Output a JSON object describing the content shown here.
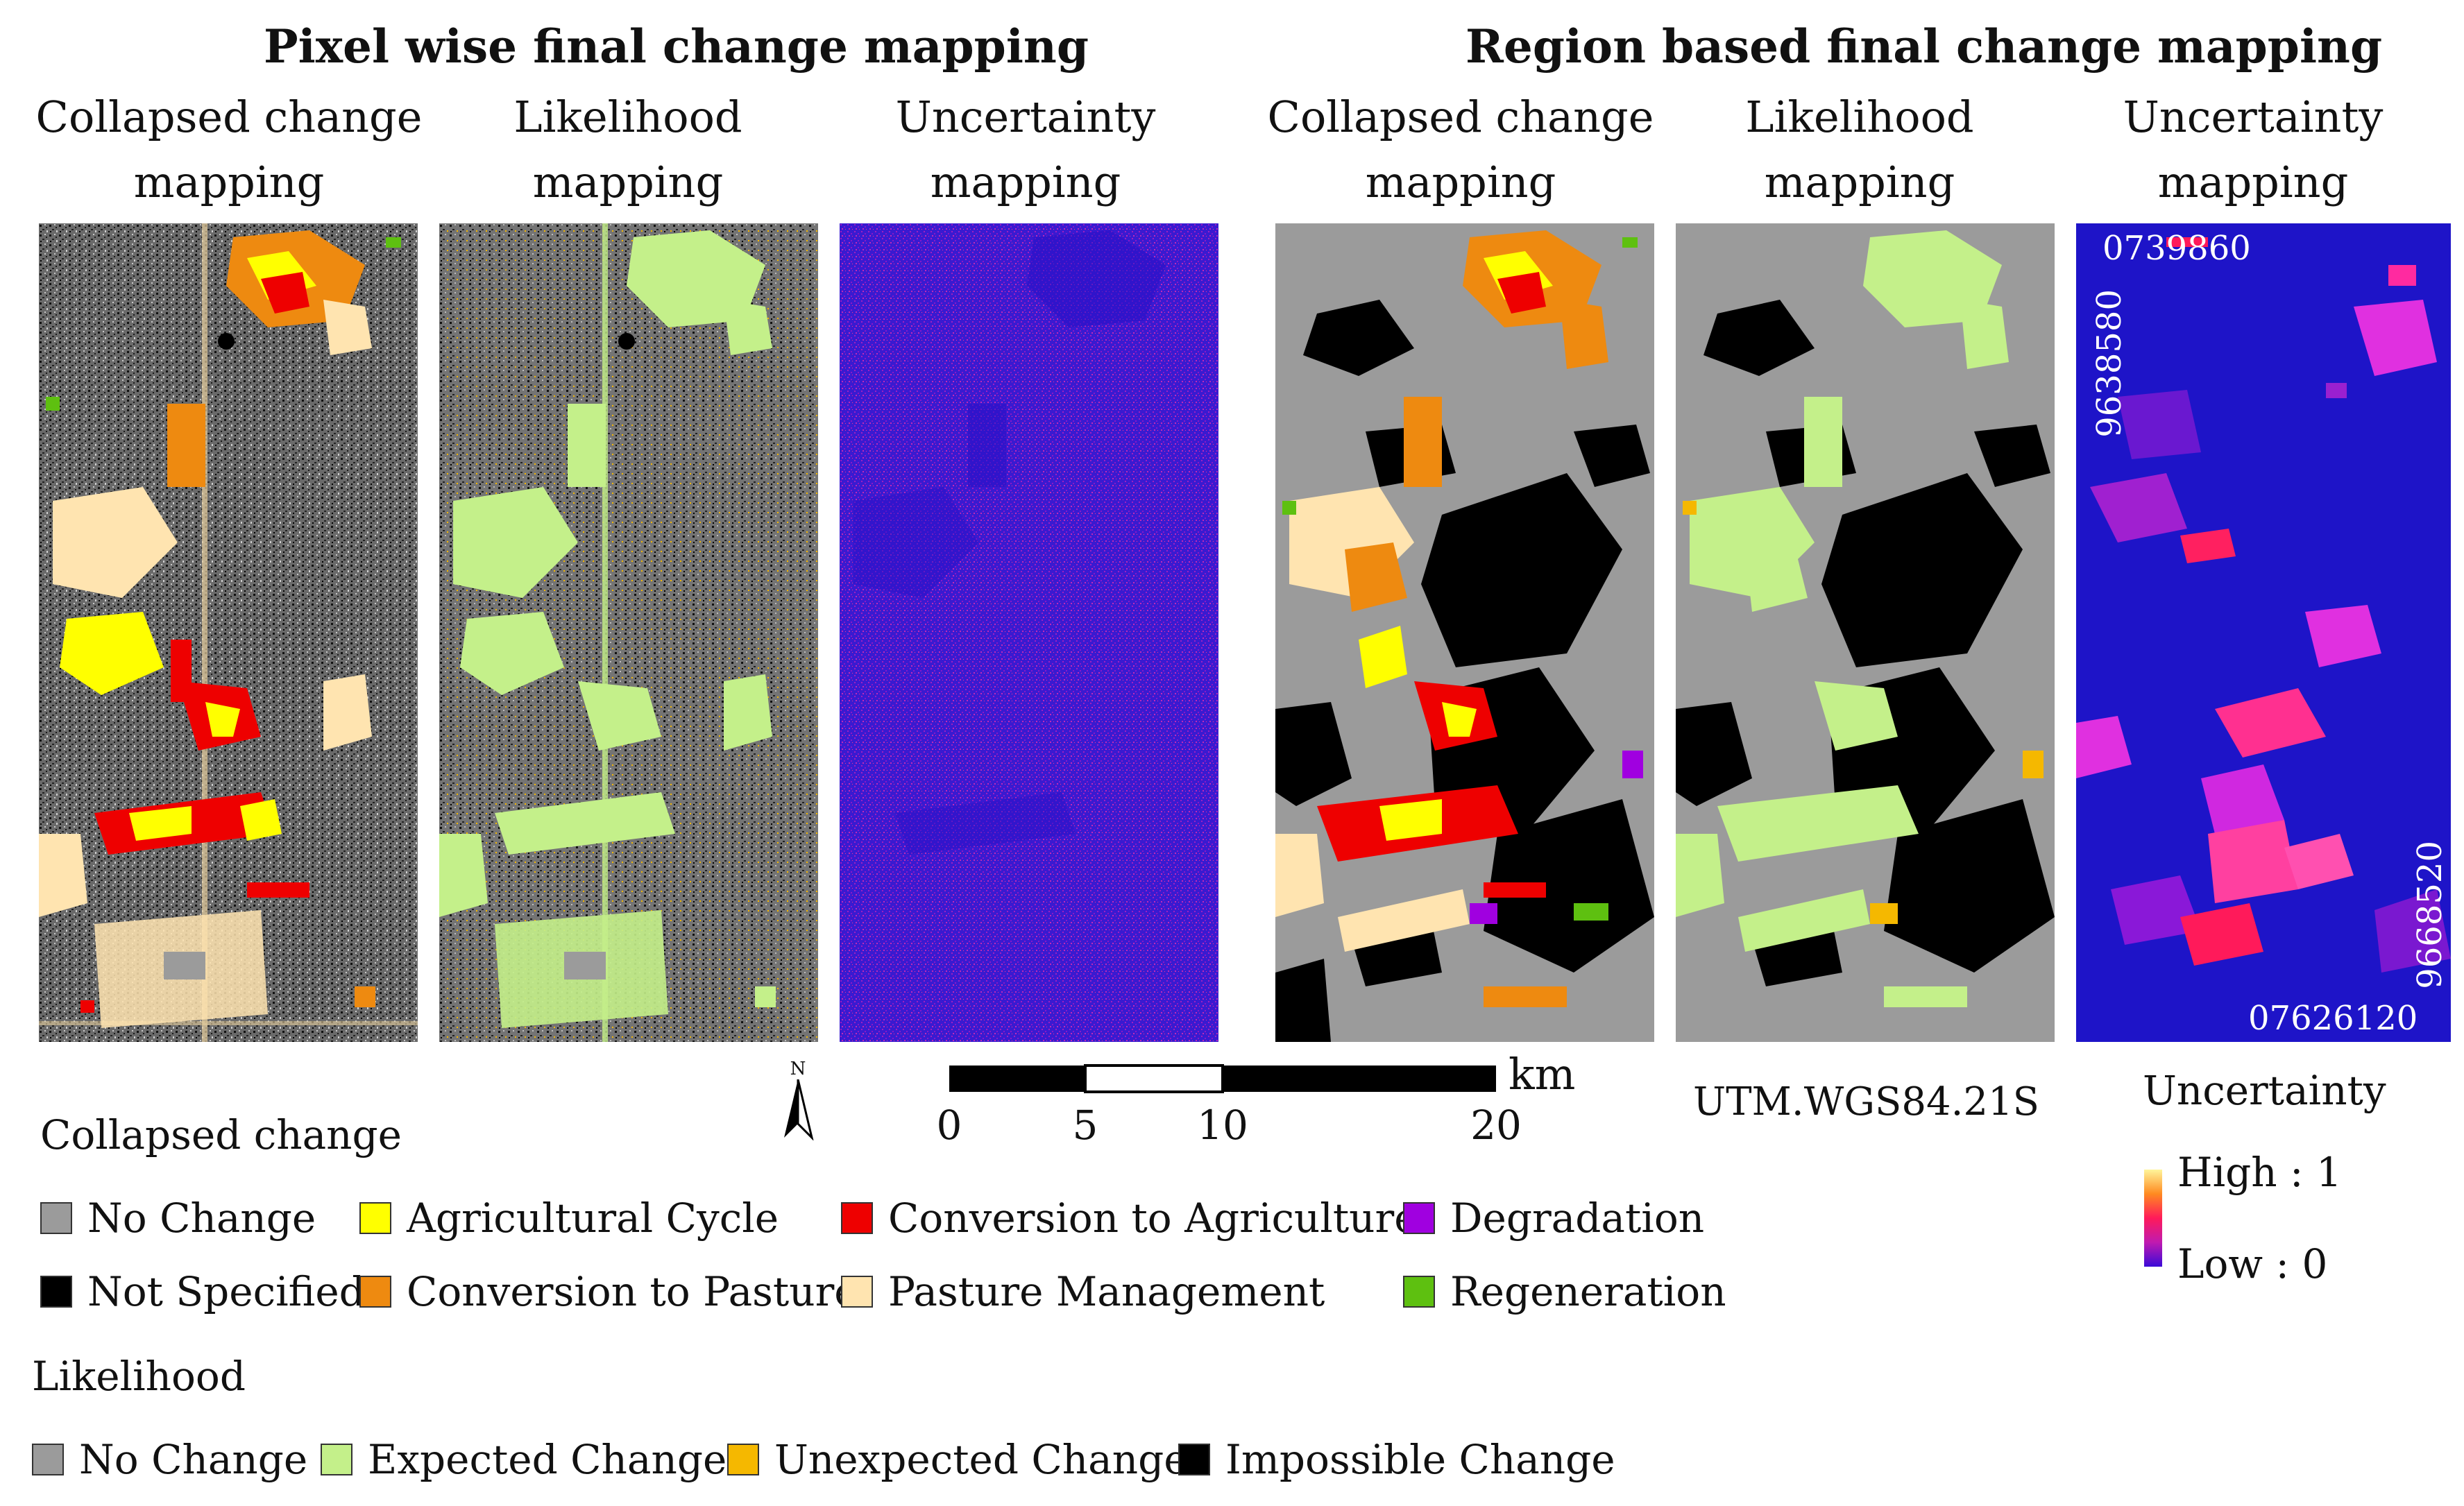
{
  "sections": {
    "pixel_title": "Pixel wise final change mapping",
    "region_title": "Region based final change mapping"
  },
  "panels": [
    {
      "title_line1": "Collapsed change",
      "title_line2": "mapping"
    },
    {
      "title_line1": "Likelihood",
      "title_line2": "mapping"
    },
    {
      "title_line1": "Uncertainty",
      "title_line2": "mapping"
    },
    {
      "title_line1": "Collapsed change",
      "title_line2": "mapping"
    },
    {
      "title_line1": "Likelihood",
      "title_line2": "mapping"
    },
    {
      "title_line1": "Uncertainty",
      "title_line2": "mapping"
    }
  ],
  "coordinates": {
    "top_x": "0739860",
    "left_y": "9638580",
    "right_y": "9668520",
    "bottom_x": "07626120"
  },
  "north_arrow": {
    "label": "N"
  },
  "scale_bar": {
    "unit": "km",
    "ticks": [
      "0",
      "5",
      "10",
      "20"
    ]
  },
  "projection": "UTM.WGS84.21S",
  "uncertainty_legend": {
    "title": "Uncertainty",
    "high": "High : 1",
    "low": "Low : 0",
    "colors": [
      "#fff59a",
      "#ff8a20",
      "#ff1a5a",
      "#c01ab0",
      "#3a0ad8"
    ]
  },
  "collapsed_legend": {
    "title": "Collapsed change",
    "items": [
      {
        "label": "No Change",
        "color": "#9b9b9b"
      },
      {
        "label": "Agricultural Cycle",
        "color": "#ffff00"
      },
      {
        "label": "Conversion to Agriculture",
        "color": "#ee0000"
      },
      {
        "label": "Degradation",
        "color": "#a000e0"
      },
      {
        "label": "Not Specified",
        "color": "#000000"
      },
      {
        "label": "Conversion to Pasture",
        "color": "#ee8a10"
      },
      {
        "label": "Pasture Management",
        "color": "#ffe4b0"
      },
      {
        "label": "Regeneration",
        "color": "#5ec010"
      }
    ]
  },
  "likelihood_legend": {
    "title": "Likelihood",
    "items": [
      {
        "label": "No Change",
        "color": "#9b9b9b"
      },
      {
        "label": "Expected Change",
        "color": "#c4f08a"
      },
      {
        "label": "Unexpected Change",
        "color": "#f5b800"
      },
      {
        "label": "Impossible Change",
        "color": "#000000"
      }
    ]
  }
}
